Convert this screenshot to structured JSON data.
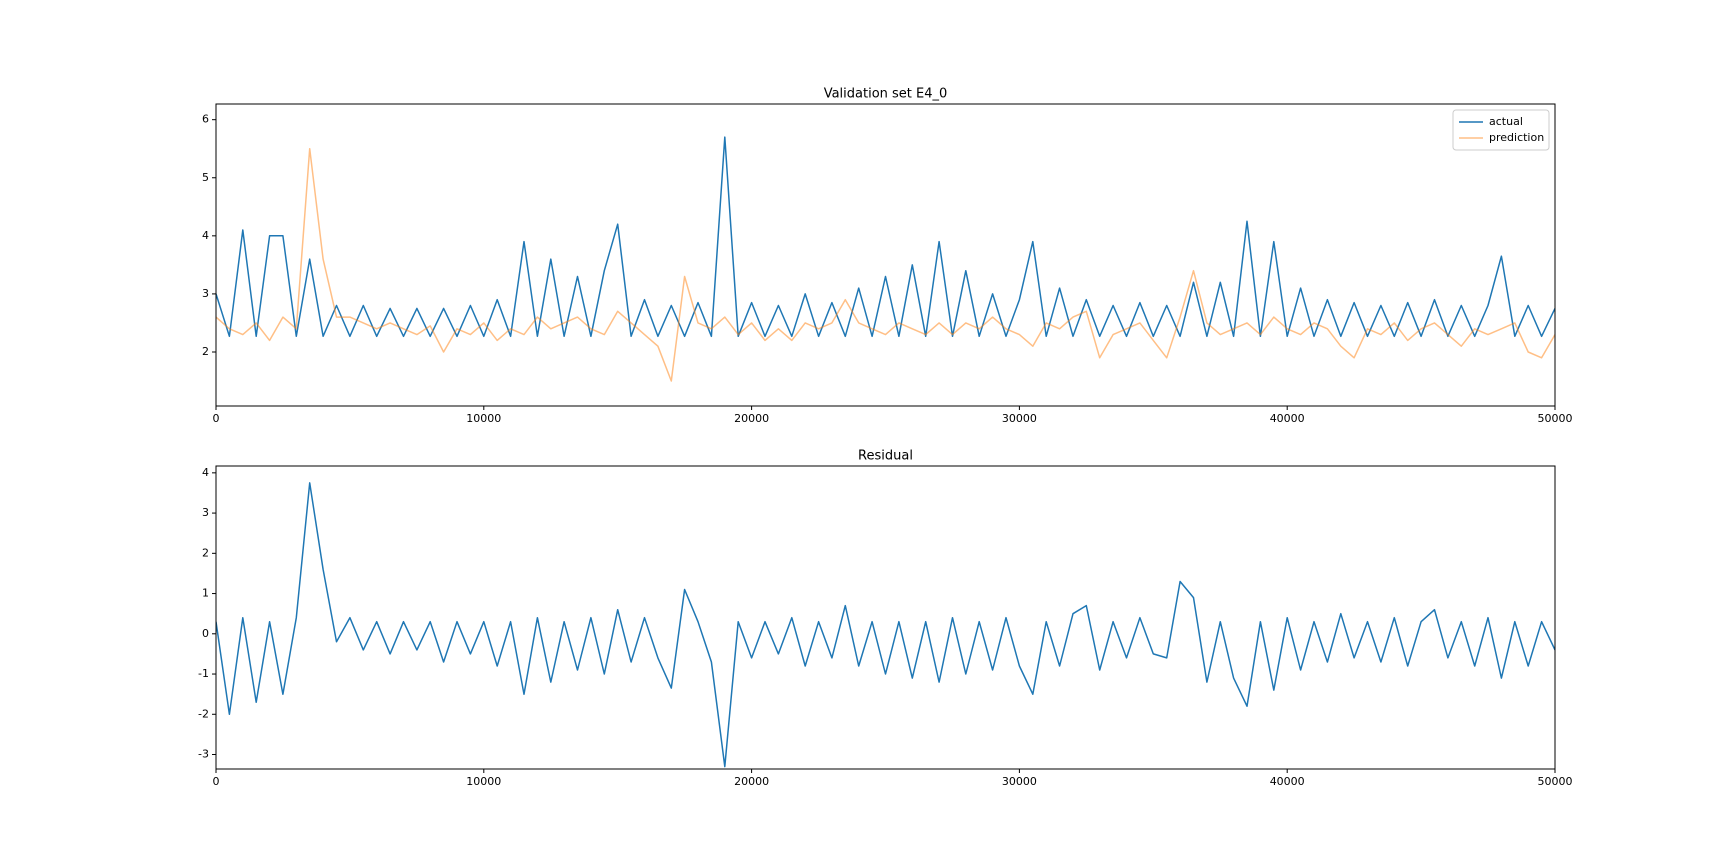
{
  "chart_data": [
    {
      "type": "line",
      "title": "Validation set E4_0",
      "x": [
        0,
        500,
        1000,
        1500,
        2000,
        2500,
        3000,
        3500,
        4000,
        4500,
        5000,
        5500,
        6000,
        6500,
        7000,
        7500,
        8000,
        8500,
        9000,
        9500,
        10000,
        10500,
        11000,
        11500,
        12000,
        12500,
        13000,
        13500,
        14000,
        14500,
        15000,
        15500,
        16000,
        16500,
        17000,
        17500,
        18000,
        18500,
        19000,
        19500,
        20000,
        20500,
        21000,
        21500,
        22000,
        22500,
        23000,
        23500,
        24000,
        24500,
        25000,
        25500,
        26000,
        26500,
        27000,
        27500,
        28000,
        28500,
        29000,
        29500,
        30000,
        30500,
        31000,
        31500,
        32000,
        32500,
        33000,
        33500,
        34000,
        34500,
        35000,
        35500,
        36000,
        36500,
        37000,
        37500,
        38000,
        38500,
        39000,
        39500,
        40000,
        40500,
        41000,
        41500,
        42000,
        42500,
        43000,
        43500,
        44000,
        44500,
        45000,
        45500,
        46000,
        46500,
        47000,
        47500,
        48000,
        48500,
        49000,
        49500,
        50000
      ],
      "series": [
        {
          "name": "actual",
          "color": "#1f77b4",
          "alpha": 1,
          "values": [
            3.0,
            2.27,
            4.1,
            2.27,
            4.0,
            4.0,
            2.27,
            3.6,
            2.27,
            2.8,
            2.27,
            2.8,
            2.27,
            2.75,
            2.27,
            2.75,
            2.27,
            2.75,
            2.27,
            2.8,
            2.27,
            2.9,
            2.27,
            3.9,
            2.27,
            3.6,
            2.27,
            3.3,
            2.27,
            3.4,
            4.2,
            2.27,
            2.9,
            2.27,
            2.8,
            2.27,
            2.85,
            2.27,
            5.7,
            2.27,
            2.85,
            2.27,
            2.8,
            2.27,
            3.0,
            2.27,
            2.85,
            2.27,
            3.1,
            2.27,
            3.3,
            2.27,
            3.5,
            2.27,
            3.9,
            2.27,
            3.4,
            2.27,
            3.0,
            2.27,
            2.9,
            3.9,
            2.27,
            3.1,
            2.27,
            2.9,
            2.27,
            2.8,
            2.27,
            2.85,
            2.27,
            2.8,
            2.27,
            3.2,
            2.27,
            3.2,
            2.27,
            4.25,
            2.27,
            3.9,
            2.27,
            3.1,
            2.27,
            2.9,
            2.27,
            2.85,
            2.27,
            2.8,
            2.27,
            2.85,
            2.27,
            2.9,
            2.27,
            2.8,
            2.27,
            2.8,
            3.65,
            2.27,
            2.8,
            2.27,
            2.75
          ]
        },
        {
          "name": "prediction",
          "color": "#ff7f0e",
          "alpha": 0.5,
          "values": [
            2.6,
            2.4,
            2.3,
            2.5,
            2.2,
            2.6,
            2.4,
            5.5,
            3.6,
            2.6,
            2.6,
            2.5,
            2.4,
            2.5,
            2.4,
            2.3,
            2.45,
            2.0,
            2.4,
            2.3,
            2.5,
            2.2,
            2.4,
            2.3,
            2.6,
            2.4,
            2.5,
            2.6,
            2.4,
            2.3,
            2.7,
            2.5,
            2.3,
            2.1,
            1.5,
            3.3,
            2.5,
            2.4,
            2.6,
            2.3,
            2.5,
            2.2,
            2.4,
            2.2,
            2.5,
            2.4,
            2.5,
            2.9,
            2.5,
            2.4,
            2.3,
            2.5,
            2.4,
            2.3,
            2.5,
            2.3,
            2.5,
            2.4,
            2.6,
            2.4,
            2.3,
            2.1,
            2.5,
            2.4,
            2.6,
            2.7,
            1.9,
            2.3,
            2.4,
            2.5,
            2.2,
            1.9,
            2.6,
            3.4,
            2.5,
            2.3,
            2.4,
            2.5,
            2.3,
            2.6,
            2.4,
            2.3,
            2.5,
            2.4,
            2.1,
            1.9,
            2.4,
            2.3,
            2.5,
            2.2,
            2.4,
            2.5,
            2.3,
            2.1,
            2.4,
            2.3,
            2.4,
            2.5,
            2.0,
            1.9,
            2.3
          ]
        }
      ],
      "xlim": [
        0,
        50000
      ],
      "xticks": [
        0,
        10000,
        20000,
        30000,
        40000,
        50000
      ],
      "ylim": [
        1.07,
        6.27
      ],
      "yticks": [
        2,
        3,
        4,
        5,
        6
      ],
      "legend": "upper right"
    },
    {
      "type": "line",
      "title": "Residual",
      "x": [
        0,
        500,
        1000,
        1500,
        2000,
        2500,
        3000,
        3500,
        4000,
        4500,
        5000,
        5500,
        6000,
        6500,
        7000,
        7500,
        8000,
        8500,
        9000,
        9500,
        10000,
        10500,
        11000,
        11500,
        12000,
        12500,
        13000,
        13500,
        14000,
        14500,
        15000,
        15500,
        16000,
        16500,
        17000,
        17500,
        18000,
        18500,
        19000,
        19500,
        20000,
        20500,
        21000,
        21500,
        22000,
        22500,
        23000,
        23500,
        24000,
        24500,
        25000,
        25500,
        26000,
        26500,
        27000,
        27500,
        28000,
        28500,
        29000,
        29500,
        30000,
        30500,
        31000,
        31500,
        32000,
        32500,
        33000,
        33500,
        34000,
        34500,
        35000,
        35500,
        36000,
        36500,
        37000,
        37500,
        38000,
        38500,
        39000,
        39500,
        40000,
        40500,
        41000,
        41500,
        42000,
        42500,
        43000,
        43500,
        44000,
        44500,
        45000,
        45500,
        46000,
        46500,
        47000,
        47500,
        48000,
        48500,
        49000,
        49500,
        50000
      ],
      "series": [
        {
          "color": "#1f77b4",
          "alpha": 1,
          "values": [
            0.3,
            -2.0,
            0.4,
            -1.7,
            0.3,
            -1.5,
            0.4,
            3.75,
            1.6,
            -0.2,
            0.4,
            -0.4,
            0.3,
            -0.5,
            0.3,
            -0.4,
            0.3,
            -0.7,
            0.3,
            -0.5,
            0.3,
            -0.8,
            0.3,
            -1.5,
            0.4,
            -1.2,
            0.3,
            -0.9,
            0.4,
            -1.0,
            0.6,
            -0.7,
            0.4,
            -0.6,
            -1.35,
            1.1,
            0.3,
            -0.7,
            -3.3,
            0.3,
            -0.6,
            0.3,
            -0.5,
            0.4,
            -0.8,
            0.3,
            -0.6,
            0.7,
            -0.8,
            0.3,
            -1.0,
            0.3,
            -1.1,
            0.3,
            -1.2,
            0.4,
            -1.0,
            0.3,
            -0.9,
            0.4,
            -0.8,
            -1.5,
            0.3,
            -0.8,
            0.5,
            0.7,
            -0.9,
            0.3,
            -0.6,
            0.4,
            -0.5,
            -0.6,
            1.3,
            0.9,
            -1.2,
            0.3,
            -1.1,
            -1.8,
            0.3,
            -1.4,
            0.4,
            -0.9,
            0.3,
            -0.7,
            0.5,
            -0.6,
            0.3,
            -0.7,
            0.4,
            -0.8,
            0.3,
            0.6,
            -0.6,
            0.3,
            -0.8,
            0.4,
            -1.1,
            0.3,
            -0.8,
            0.3,
            -0.4
          ]
        }
      ],
      "xlim": [
        0,
        50000
      ],
      "xticks": [
        0,
        10000,
        20000,
        30000,
        40000,
        50000
      ],
      "ylim": [
        -3.36,
        4.17
      ],
      "yticks": [
        -3,
        -2,
        -1,
        0,
        1,
        2,
        3,
        4
      ]
    }
  ]
}
